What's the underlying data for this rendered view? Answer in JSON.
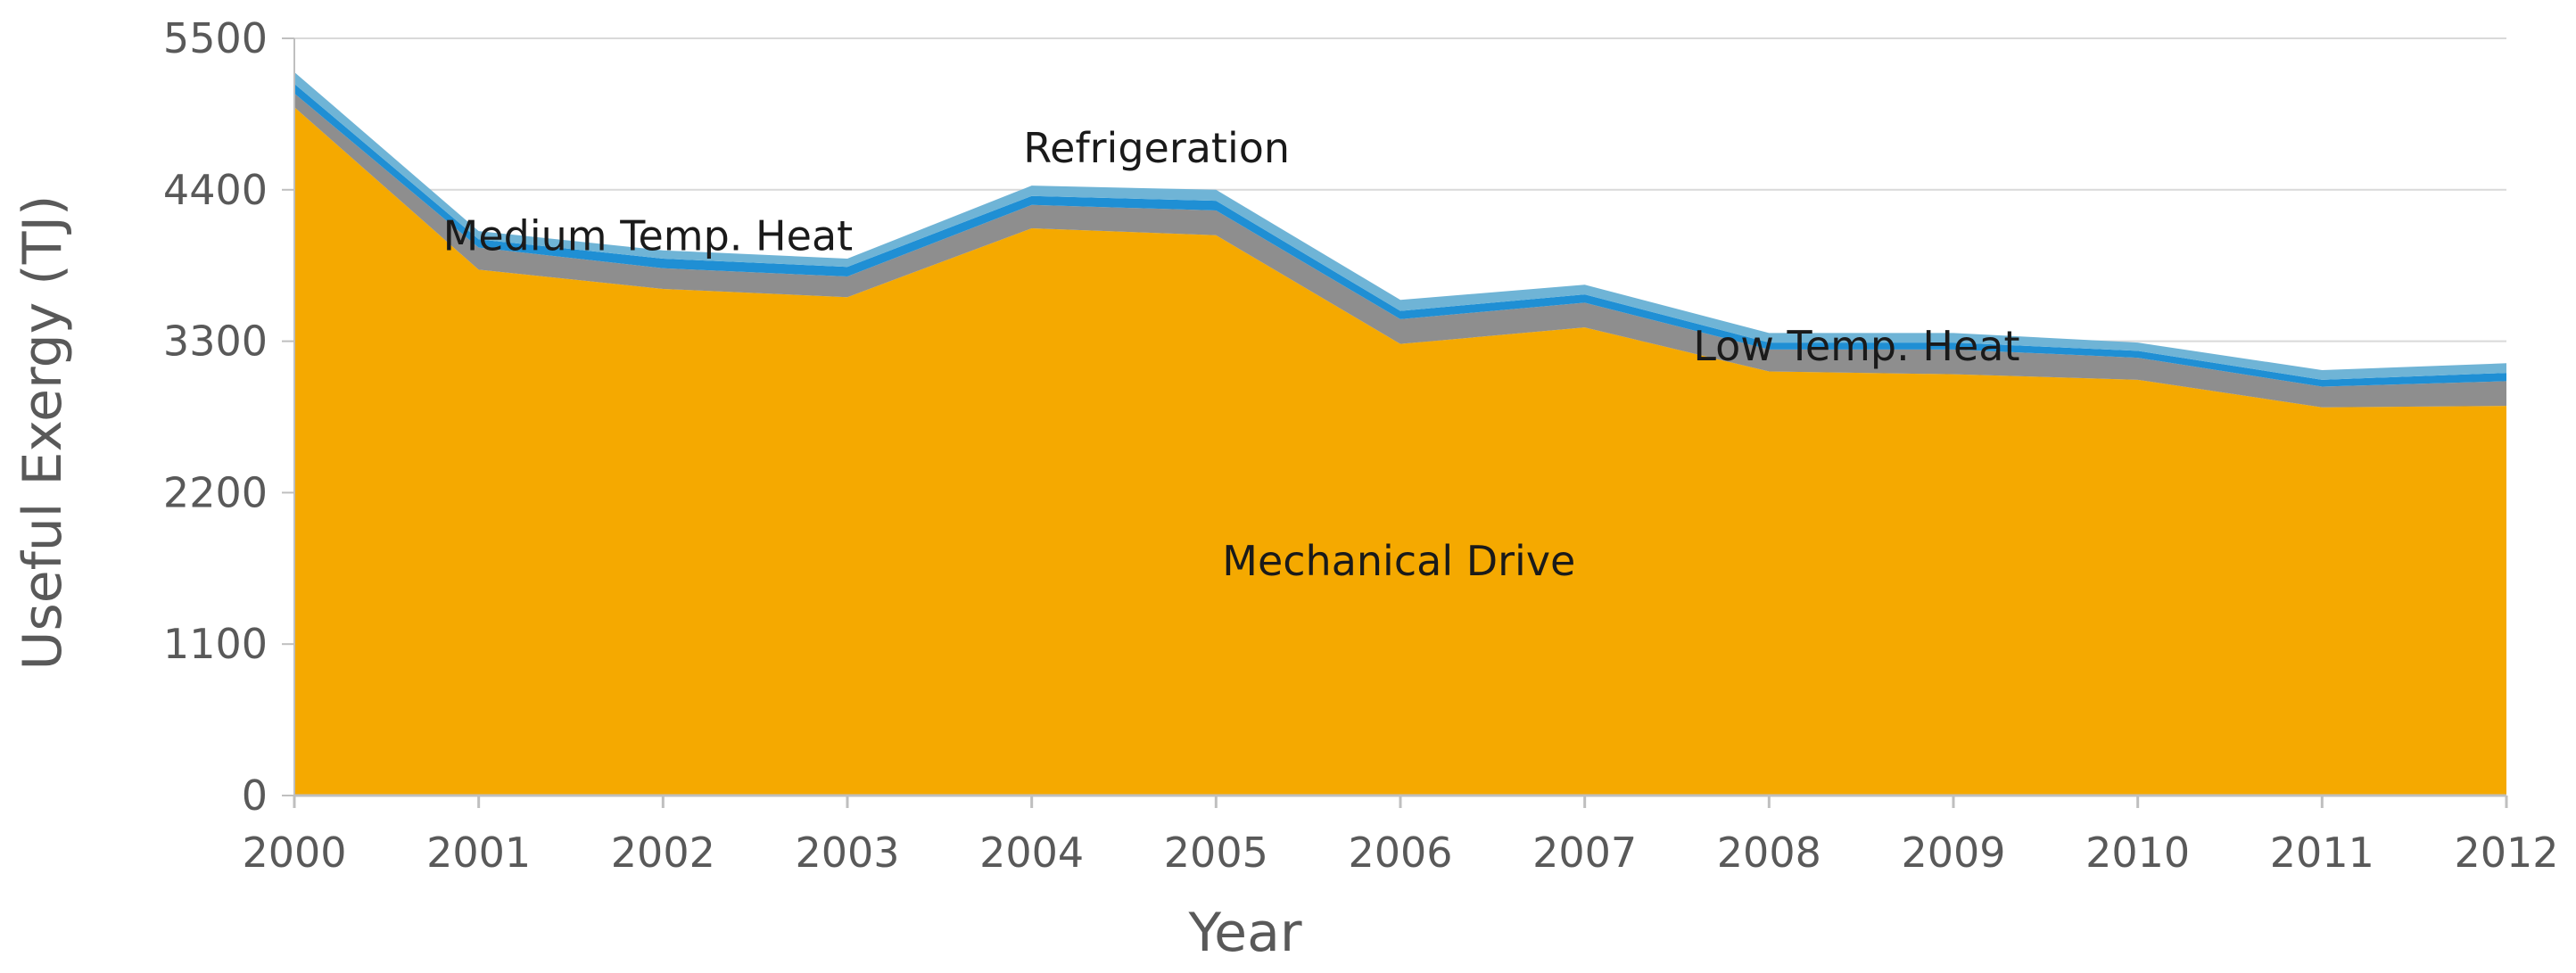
{
  "chart_data": {
    "type": "area",
    "stacked": true,
    "title": "",
    "xlabel": "Year",
    "ylabel": "Useful Exergy (TJ)",
    "ylim": [
      0,
      5500
    ],
    "yticks": [
      0,
      1100,
      2200,
      3300,
      4400,
      5500
    ],
    "grid": true,
    "x": [
      "2000",
      "2001",
      "2002",
      "2003",
      "2004",
      "2005",
      "2006",
      "2007",
      "2008",
      "2009",
      "2010",
      "2011",
      "2012"
    ],
    "series": [
      {
        "name": "Mechanical Drive",
        "color": "#F5A900",
        "values": [
          5000,
          3820,
          3680,
          3620,
          4120,
          4070,
          3280,
          3400,
          3080,
          3060,
          3020,
          2820,
          2830
        ]
      },
      {
        "name": "Low Temp. Heat",
        "color": "#8E8E8E",
        "values": [
          100,
          160,
          150,
          150,
          170,
          180,
          180,
          180,
          160,
          180,
          160,
          150,
          180
        ]
      },
      {
        "name": "Medium Temp. Heat",
        "color": "#1F8FD4",
        "values": [
          70,
          60,
          70,
          70,
          65,
          70,
          60,
          60,
          50,
          50,
          50,
          50,
          60
        ]
      },
      {
        "name": "Refrigeration",
        "color": "#6FB4D6",
        "values": [
          85,
          60,
          60,
          60,
          75,
          80,
          80,
          70,
          70,
          70,
          60,
          70,
          70
        ]
      }
    ],
    "annotations": [
      {
        "text": "Refrigeration",
        "x": "2004",
        "y": 4600
      },
      {
        "text": "Medium Temp. Heat",
        "x": "2001",
        "y": 3960
      },
      {
        "text": "Low Temp. Heat",
        "x": "2008",
        "y": 3160
      },
      {
        "text": "Mechanical Drive",
        "x": "2005",
        "y": 1600
      }
    ]
  }
}
